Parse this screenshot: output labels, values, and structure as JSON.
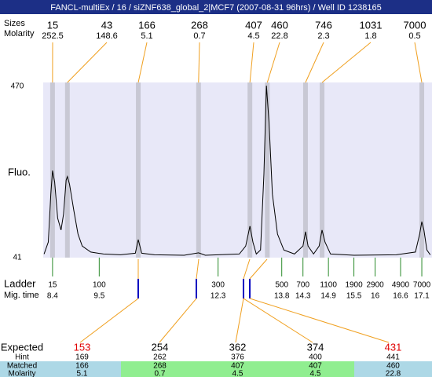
{
  "title": "FANCL-multiEx / 16 / siZNF638_global_2|MCF7 (2007-08-31 96hrs) / Well ID 1238165",
  "chart_data": {
    "type": "line",
    "ylabel": "Fluo.",
    "ylim": [
      41,
      470
    ],
    "yticks": [
      41,
      470
    ],
    "xlim": [
      8.18,
      17.34
    ],
    "color": "#000000",
    "plot_color": "#e8e8f8",
    "band_color": "#c8c8d4",
    "x": [
      8.2,
      8.3,
      8.36,
      8.4,
      8.45,
      8.52,
      8.6,
      8.66,
      8.72,
      8.75,
      8.8,
      8.9,
      9.0,
      9.1,
      9.3,
      9.6,
      10.0,
      10.35,
      10.42,
      10.5,
      10.8,
      11.5,
      11.84,
      12.0,
      12.8,
      12.95,
      13.05,
      13.12,
      13.2,
      13.3,
      13.38,
      13.44,
      13.5,
      13.58,
      13.7,
      13.85,
      14.1,
      14.3,
      14.36,
      14.42,
      14.55,
      14.68,
      14.75,
      14.82,
      14.95,
      15.5,
      16.5,
      16.95,
      17.05,
      17.1,
      17.15,
      17.22,
      17.3
    ],
    "values": [
      50,
      80,
      200,
      259,
      230,
      140,
      110,
      150,
      235,
      244,
      225,
      160,
      100,
      70,
      55,
      50,
      48,
      52,
      86,
      52,
      48,
      47,
      53,
      47,
      50,
      70,
      120,
      80,
      50,
      60,
      250,
      472,
      380,
      200,
      100,
      60,
      50,
      70,
      106,
      70,
      50,
      70,
      110,
      80,
      50,
      47,
      48,
      55,
      100,
      131,
      110,
      60,
      48
    ]
  },
  "peaks": {
    "size_label": "Sizes",
    "molarity_label": "Molarity",
    "sizes": [
      15,
      43,
      166,
      268,
      407,
      460,
      746,
      1031,
      7000
    ],
    "molarity": [
      252.5,
      148.6,
      5.1,
      0.7,
      4.5,
      22.8,
      2.3,
      1.8,
      0.5
    ],
    "times": [
      8.4,
      8.75,
      10.42,
      11.84,
      13.05,
      13.46,
      14.36,
      14.75,
      17.1
    ]
  },
  "ladder": {
    "label": "Ladder",
    "time_label": "Mig. time",
    "sizes": [
      15,
      100,
      300,
      500,
      700,
      1100,
      1900,
      2900,
      4900,
      7000
    ],
    "times": [
      8.4,
      9.5,
      12.3,
      13.8,
      14.3,
      14.9,
      15.5,
      16,
      16.6,
      17.1
    ]
  },
  "table": {
    "labels": [
      "Expected",
      "Hint",
      "Matched",
      "Molarity"
    ],
    "expected": [
      153,
      254,
      362,
      374,
      431
    ],
    "expected_colors": [
      "#e00000",
      "#000000",
      "#000000",
      "#000000",
      "#e00000"
    ],
    "hint": [
      169,
      262,
      376,
      400,
      441
    ],
    "matched": [
      166,
      268,
      407,
      407,
      460
    ],
    "molarity": [
      5.1,
      0.7,
      4.5,
      4.5,
      22.8
    ],
    "cell_colors": [
      "#add8e6",
      "#90ee90",
      "#90ee90",
      "#90ee90",
      "#add8e6"
    ]
  }
}
